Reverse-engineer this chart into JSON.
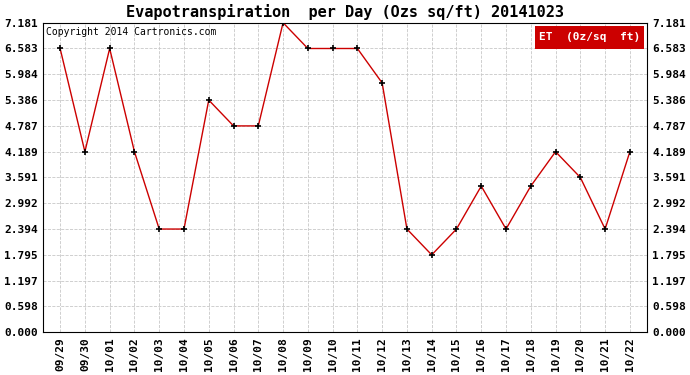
{
  "title": "Evapotranspiration  per Day (Ozs sq/ft) 20141023",
  "copyright": "Copyright 2014 Cartronics.com",
  "legend_label": "ET  (0z/sq  ft)",
  "x_labels": [
    "09/29",
    "09/30",
    "10/01",
    "10/02",
    "10/03",
    "10/04",
    "10/05",
    "10/06",
    "10/07",
    "10/08",
    "10/09",
    "10/10",
    "10/11",
    "10/12",
    "10/13",
    "10/14",
    "10/15",
    "10/16",
    "10/17",
    "10/18",
    "10/19",
    "10/20",
    "10/21",
    "10/22"
  ],
  "y_values": [
    6.583,
    4.189,
    6.583,
    4.189,
    2.394,
    2.394,
    5.386,
    4.787,
    4.787,
    7.181,
    6.583,
    6.583,
    6.583,
    5.784,
    2.394,
    1.795,
    2.394,
    3.391,
    2.394,
    3.391,
    4.189,
    3.591,
    2.394,
    4.189
  ],
  "y_ticks": [
    0.0,
    0.598,
    1.197,
    1.795,
    2.394,
    2.992,
    3.591,
    4.189,
    4.787,
    5.386,
    5.984,
    6.583,
    7.181
  ],
  "ylim": [
    0.0,
    7.181
  ],
  "line_color": "#cc0000",
  "marker_color": "#000000",
  "background_color": "#ffffff",
  "grid_color": "#c8c8c8",
  "legend_bg": "#cc0000",
  "legend_text_color": "#ffffff",
  "title_fontsize": 11,
  "copyright_fontsize": 7,
  "tick_fontsize": 8,
  "legend_fontsize": 8
}
